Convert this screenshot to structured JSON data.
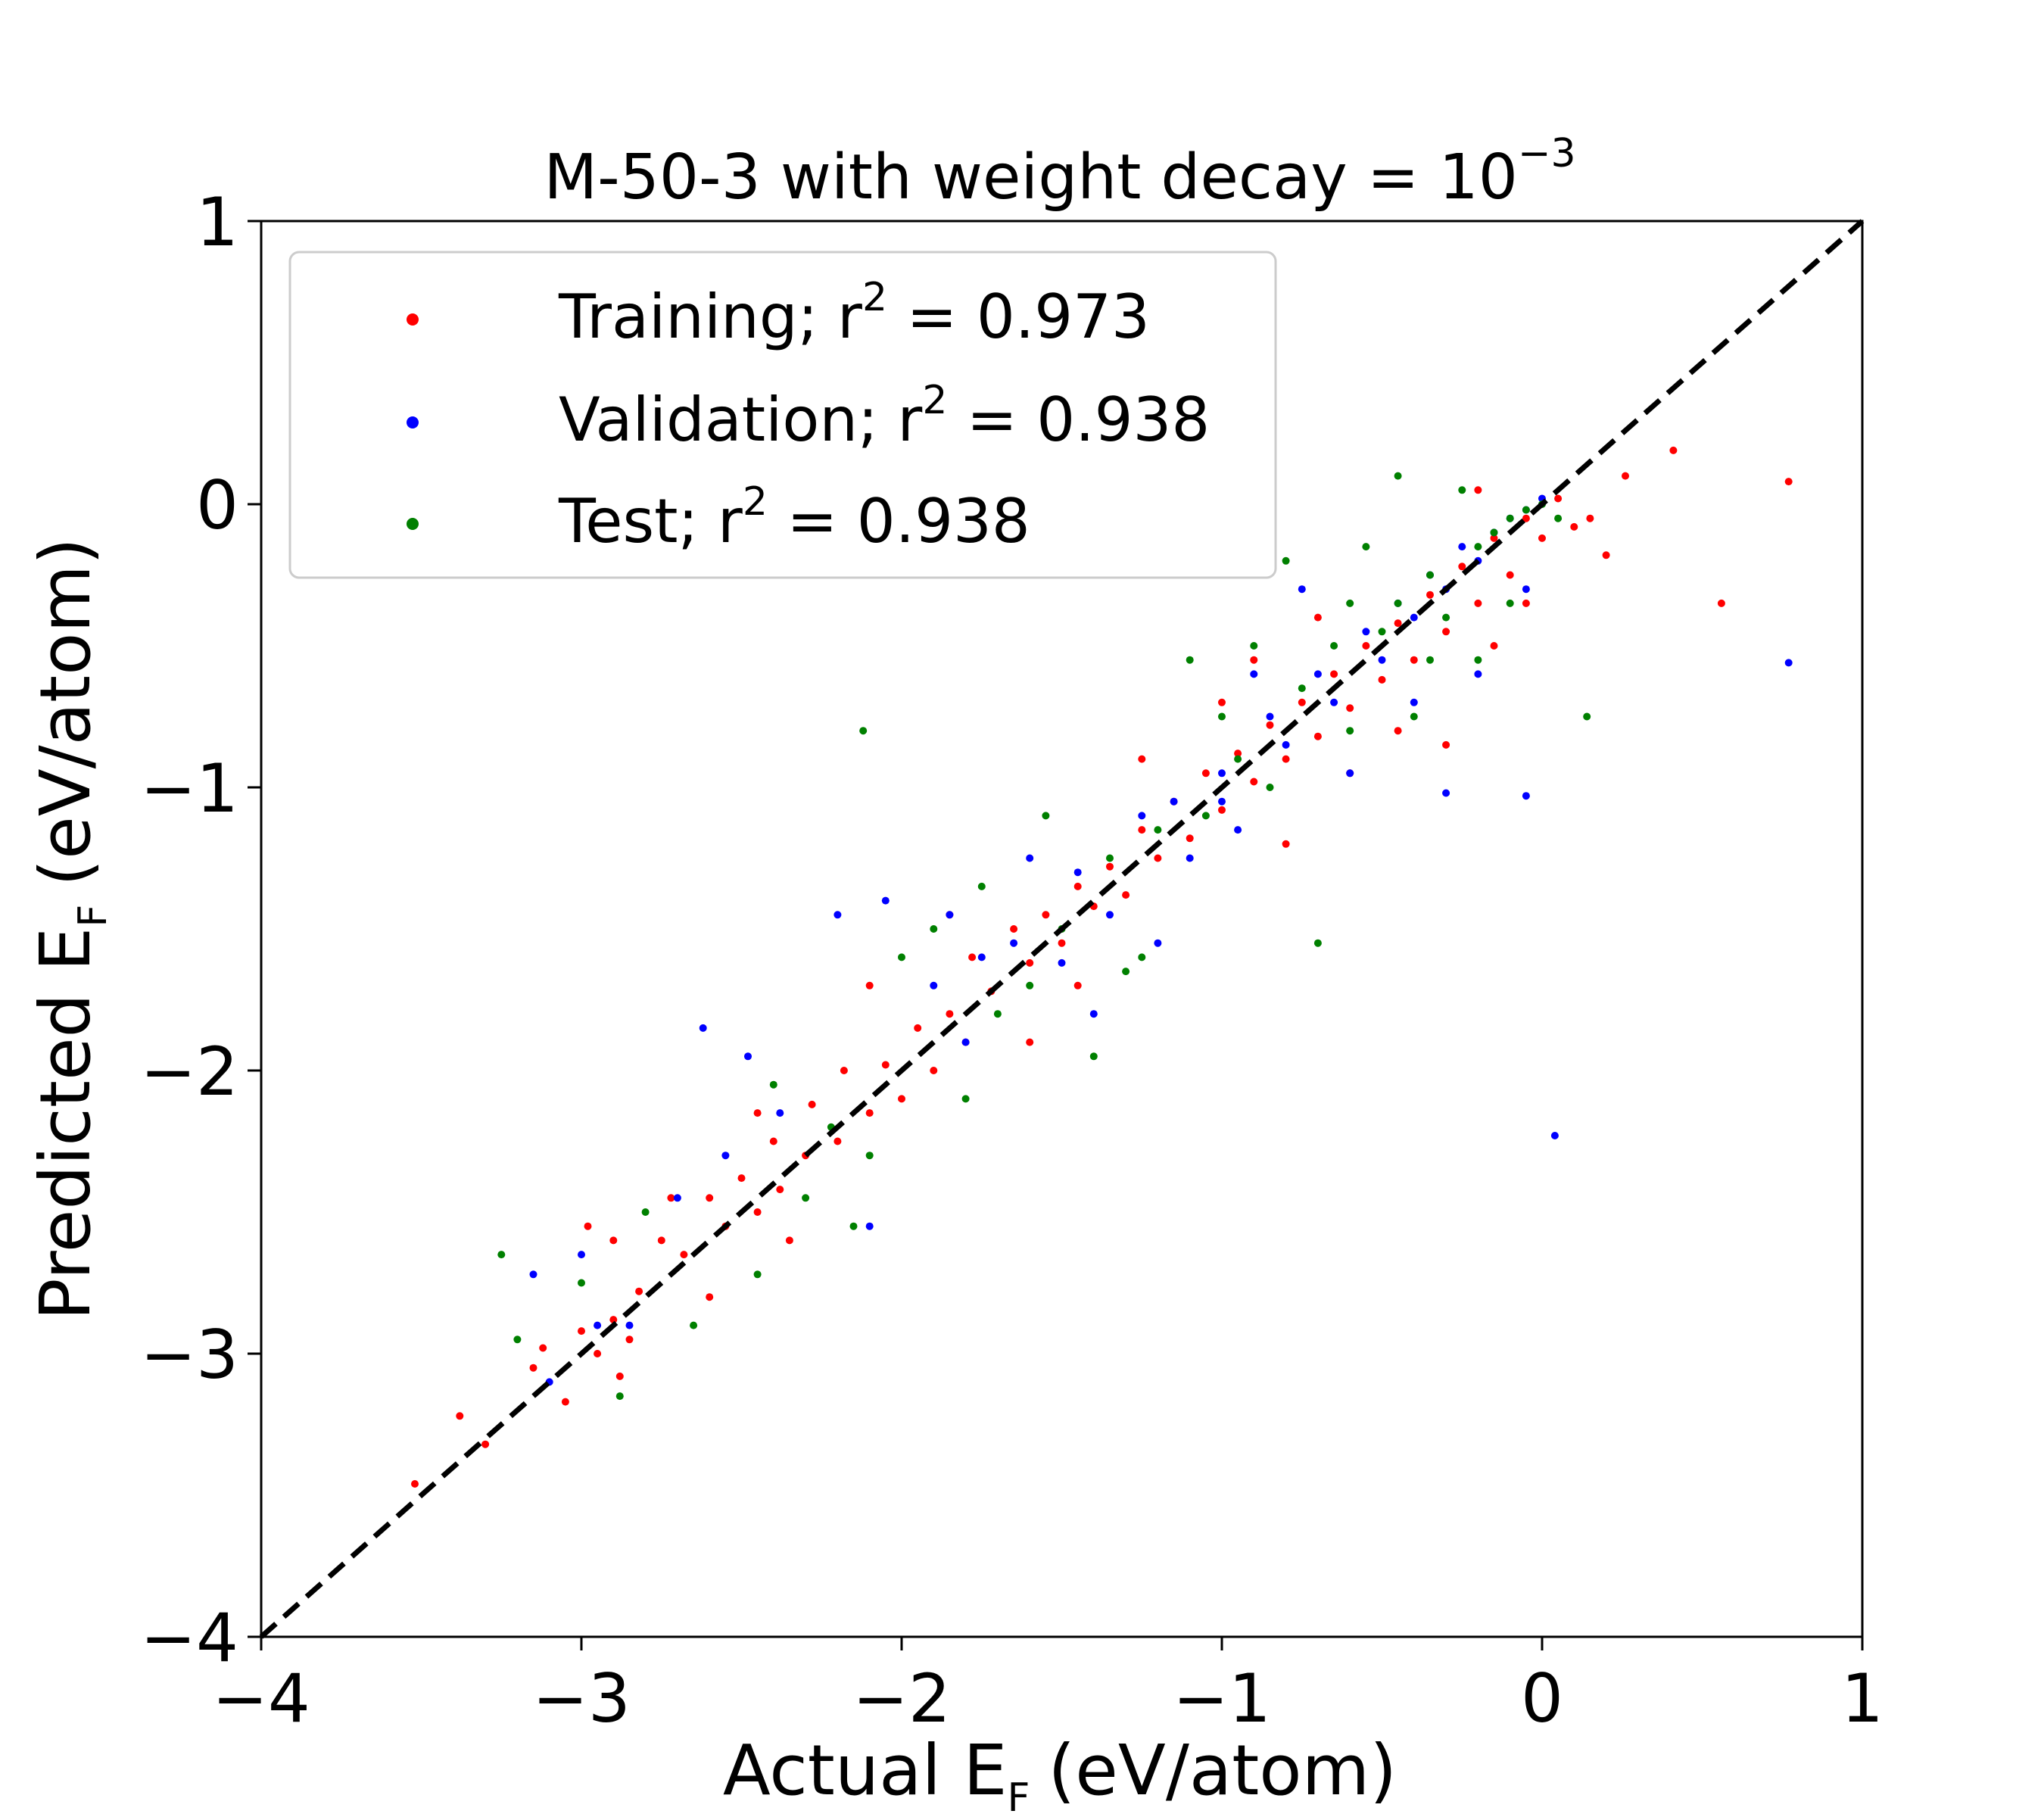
{
  "chart_data": {
    "type": "scatter",
    "title": "M-50-3 with weight decay = 10",
    "title_exponent": "−3",
    "xlabel": "Actual E",
    "xlabel_subscript": "F",
    "xlabel_unit": "(eV/atom)",
    "ylabel": "Predicted E",
    "ylabel_subscript": "F",
    "ylabel_unit": "(eV/atom)",
    "xlim": [
      -4,
      1
    ],
    "ylim": [
      -4,
      1
    ],
    "xticks": [
      "−4",
      "−3",
      "−2",
      "−1",
      "0",
      "1"
    ],
    "yticks": [
      "−4",
      "−3",
      "−2",
      "−1",
      "0",
      "1"
    ],
    "xtick_values": [
      -4,
      -3,
      -2,
      -1,
      0,
      1
    ],
    "ytick_values": [
      -4,
      -3,
      -2,
      -1,
      0,
      1
    ],
    "grid": false,
    "legend_position": "upper-left",
    "reference_line": {
      "style": "dashed",
      "color": "#000000",
      "from": [
        -4,
        -4
      ],
      "to": [
        1,
        1
      ]
    },
    "series": [
      {
        "name": "Training; r",
        "r2_label": " = 0.973",
        "color": "#ff0000",
        "points": [
          [
            -3.52,
            -3.46
          ],
          [
            -3.38,
            -3.22
          ],
          [
            -3.3,
            -3.32
          ],
          [
            -3.15,
            -3.05
          ],
          [
            -3.12,
            -2.98
          ],
          [
            -3.05,
            -3.17
          ],
          [
            -3.0,
            -2.92
          ],
          [
            -2.98,
            -2.55
          ],
          [
            -2.95,
            -3.0
          ],
          [
            -2.9,
            -2.88
          ],
          [
            -2.88,
            -3.08
          ],
          [
            -2.85,
            -2.95
          ],
          [
            -2.82,
            -2.78
          ],
          [
            -2.75,
            -2.6
          ],
          [
            -2.72,
            -2.45
          ],
          [
            -2.68,
            -2.65
          ],
          [
            -2.6,
            -2.45
          ],
          [
            -2.55,
            -2.55
          ],
          [
            -2.5,
            -2.38
          ],
          [
            -2.45,
            -2.5
          ],
          [
            -2.4,
            -2.25
          ],
          [
            -2.38,
            -2.42
          ],
          [
            -2.3,
            -2.3
          ],
          [
            -2.28,
            -2.12
          ],
          [
            -2.2,
            -2.25
          ],
          [
            -2.18,
            -2.0
          ],
          [
            -2.1,
            -2.15
          ],
          [
            -2.05,
            -1.98
          ],
          [
            -2.0,
            -2.1
          ],
          [
            -1.95,
            -1.85
          ],
          [
            -1.9,
            -2.0
          ],
          [
            -1.85,
            -1.8
          ],
          [
            -1.8,
            -1.9
          ],
          [
            -1.78,
            -1.6
          ],
          [
            -1.72,
            -1.72
          ],
          [
            -1.65,
            -1.5
          ],
          [
            -1.6,
            -1.62
          ],
          [
            -1.55,
            -1.45
          ],
          [
            -1.5,
            -1.55
          ],
          [
            -1.45,
            -1.35
          ],
          [
            -1.4,
            -1.42
          ],
          [
            -1.35,
            -1.28
          ],
          [
            -1.3,
            -1.38
          ],
          [
            -1.25,
            -1.15
          ],
          [
            -1.2,
            -1.25
          ],
          [
            -1.15,
            -1.05
          ],
          [
            -1.1,
            -1.18
          ],
          [
            -1.05,
            -0.95
          ],
          [
            -1.0,
            -1.08
          ],
          [
            -0.95,
            -0.88
          ],
          [
            -0.9,
            -0.98
          ],
          [
            -0.85,
            -0.78
          ],
          [
            -0.8,
            -0.9
          ],
          [
            -0.75,
            -0.7
          ],
          [
            -0.7,
            -0.82
          ],
          [
            -0.65,
            -0.6
          ],
          [
            -0.6,
            -0.72
          ],
          [
            -0.55,
            -0.5
          ],
          [
            -0.5,
            -0.62
          ],
          [
            -0.45,
            -0.42
          ],
          [
            -0.4,
            -0.55
          ],
          [
            -0.35,
            -0.32
          ],
          [
            -0.3,
            -0.45
          ],
          [
            -0.25,
            -0.22
          ],
          [
            -0.2,
            -0.35
          ],
          [
            -0.15,
            -0.12
          ],
          [
            -0.1,
            -0.25
          ],
          [
            -0.05,
            -0.05
          ],
          [
            0.0,
            -0.12
          ],
          [
            0.05,
            0.02
          ],
          [
            0.1,
            -0.08
          ],
          [
            0.15,
            -0.05
          ],
          [
            0.2,
            -0.18
          ],
          [
            0.26,
            0.1
          ],
          [
            0.41,
            0.19
          ],
          [
            0.56,
            -0.35
          ],
          [
            0.77,
            0.08
          ],
          [
            -1.25,
            -0.9
          ],
          [
            -0.9,
            -0.55
          ],
          [
            -0.6,
            -0.95
          ],
          [
            -1.6,
            -1.9
          ],
          [
            -2.1,
            -1.7
          ],
          [
            -2.35,
            -2.6
          ],
          [
            -0.3,
            -0.85
          ],
          [
            -0.7,
            -0.4
          ],
          [
            -1.0,
            -0.7
          ],
          [
            -0.15,
            -0.5
          ],
          [
            -2.6,
            -2.8
          ],
          [
            -1.85,
            -1.45
          ],
          [
            -0.45,
            -0.8
          ],
          [
            -0.05,
            -0.35
          ],
          [
            -1.45,
            -1.7
          ],
          [
            -2.45,
            -2.15
          ],
          [
            -2.9,
            -2.6
          ],
          [
            -0.8,
            -1.2
          ],
          [
            -0.2,
            0.05
          ]
        ]
      },
      {
        "name": "Validation; r",
        "r2_label": " = 0.938",
        "color": "#0000ff",
        "points": [
          [
            -3.15,
            -2.72
          ],
          [
            -3.1,
            -3.1
          ],
          [
            -3.0,
            -2.65
          ],
          [
            -2.95,
            -2.9
          ],
          [
            -2.85,
            -2.9
          ],
          [
            -2.62,
            -1.85
          ],
          [
            -2.55,
            -2.3
          ],
          [
            -2.48,
            -1.95
          ],
          [
            -2.38,
            -2.15
          ],
          [
            -2.2,
            -1.45
          ],
          [
            -2.1,
            -2.55
          ],
          [
            -2.05,
            -1.4
          ],
          [
            -1.9,
            -1.7
          ],
          [
            -1.8,
            -1.9
          ],
          [
            -1.75,
            -1.6
          ],
          [
            -1.65,
            -1.55
          ],
          [
            -1.5,
            -1.62
          ],
          [
            -1.45,
            -1.3
          ],
          [
            -1.35,
            -1.45
          ],
          [
            -1.25,
            -1.1
          ],
          [
            -1.15,
            -1.05
          ],
          [
            -1.1,
            -1.25
          ],
          [
            -1.0,
            -0.95
          ],
          [
            -0.95,
            -1.15
          ],
          [
            -0.85,
            -0.75
          ],
          [
            -0.8,
            -0.85
          ],
          [
            -0.7,
            -0.6
          ],
          [
            -0.65,
            -0.7
          ],
          [
            -0.55,
            -0.45
          ],
          [
            -0.5,
            -0.55
          ],
          [
            -0.45,
            -0.35
          ],
          [
            -0.4,
            -0.4
          ],
          [
            -0.35,
            -0.25
          ],
          [
            -0.3,
            -0.3
          ],
          [
            -0.25,
            -0.15
          ],
          [
            -0.2,
            -0.2
          ],
          [
            -0.15,
            -0.1
          ],
          [
            -0.1,
            -0.05
          ],
          [
            -0.05,
            -0.02
          ],
          [
            0.0,
            0.02
          ],
          [
            0.04,
            -2.23
          ],
          [
            0.77,
            -0.56
          ],
          [
            -0.05,
            -1.03
          ],
          [
            -0.3,
            -1.02
          ],
          [
            -0.6,
            -0.95
          ],
          [
            -1.0,
            -1.05
          ],
          [
            -1.4,
            -1.8
          ],
          [
            -0.75,
            -0.3
          ],
          [
            -1.85,
            -1.45
          ],
          [
            -2.7,
            -2.45
          ],
          [
            -0.2,
            -0.6
          ],
          [
            -0.4,
            -0.7
          ],
          [
            -1.6,
            -1.25
          ],
          [
            -1.2,
            -1.55
          ],
          [
            -0.9,
            -0.6
          ],
          [
            -0.05,
            -0.3
          ]
        ]
      },
      {
        "name": "Test; r",
        "r2_label": " = 0.938",
        "color": "#008000",
        "points": [
          [
            -3.25,
            -2.65
          ],
          [
            -3.2,
            -2.95
          ],
          [
            -3.0,
            -2.75
          ],
          [
            -2.88,
            -3.15
          ],
          [
            -2.8,
            -2.5
          ],
          [
            -2.65,
            -2.9
          ],
          [
            -2.45,
            -2.72
          ],
          [
            -2.4,
            -2.05
          ],
          [
            -2.3,
            -2.45
          ],
          [
            -2.22,
            -2.2
          ],
          [
            -2.15,
            -2.55
          ],
          [
            -2.1,
            -2.3
          ],
          [
            -2.12,
            -0.8
          ],
          [
            -1.9,
            -1.5
          ],
          [
            -1.8,
            -2.1
          ],
          [
            -1.7,
            -1.8
          ],
          [
            -1.6,
            -1.7
          ],
          [
            -1.5,
            -1.5
          ],
          [
            -1.4,
            -1.95
          ],
          [
            -1.35,
            -1.25
          ],
          [
            -1.25,
            -1.6
          ],
          [
            -1.2,
            -1.15
          ],
          [
            -1.1,
            -0.55
          ],
          [
            -1.05,
            -1.1
          ],
          [
            -0.95,
            -0.9
          ],
          [
            -0.9,
            -0.5
          ],
          [
            -0.85,
            -1.0
          ],
          [
            -0.75,
            -0.65
          ],
          [
            -0.7,
            -1.55
          ],
          [
            -0.65,
            -0.5
          ],
          [
            -0.6,
            -0.8
          ],
          [
            -0.5,
            -0.45
          ],
          [
            -0.45,
            -0.35
          ],
          [
            -0.4,
            -0.75
          ],
          [
            -0.35,
            -0.25
          ],
          [
            -0.3,
            -0.4
          ],
          [
            -0.25,
            0.05
          ],
          [
            -0.2,
            -0.15
          ],
          [
            -0.15,
            -0.1
          ],
          [
            -0.1,
            -0.05
          ],
          [
            -0.05,
            -0.02
          ],
          [
            0.0,
            0.0
          ],
          [
            0.05,
            -0.05
          ],
          [
            0.14,
            -0.75
          ],
          [
            -0.2,
            -0.55
          ],
          [
            -0.8,
            -0.2
          ],
          [
            -1.3,
            -1.65
          ],
          [
            -1.75,
            -1.35
          ],
          [
            -2.0,
            -1.6
          ],
          [
            -0.55,
            -0.15
          ],
          [
            -0.35,
            -0.55
          ],
          [
            -1.55,
            -1.1
          ],
          [
            -0.1,
            -0.35
          ],
          [
            -0.6,
            -0.35
          ],
          [
            -1.0,
            -0.75
          ],
          [
            -0.45,
            0.1
          ]
        ]
      }
    ]
  }
}
